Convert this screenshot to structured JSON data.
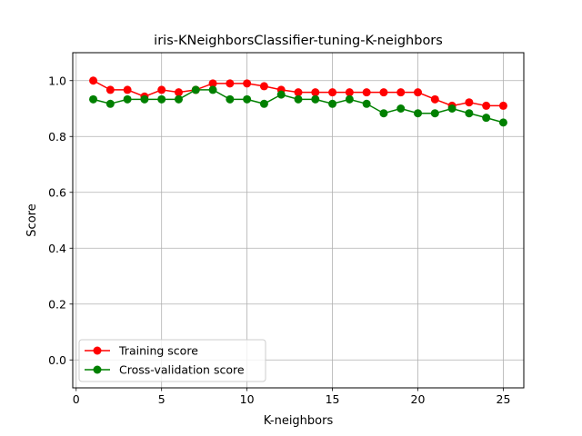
{
  "chart_data": {
    "type": "line",
    "title": "iris-KNeighborsClassifier-tuning-K-neighbors",
    "xlabel": "K-neighbors",
    "ylabel": "Score",
    "xlim": [
      -0.2,
      26.2
    ],
    "ylim": [
      -0.1,
      1.1
    ],
    "xticks": [
      0,
      5,
      10,
      15,
      20,
      25
    ],
    "yticks": [
      0.0,
      0.2,
      0.4,
      0.6,
      0.8,
      1.0
    ],
    "xtick_labels": [
      "0",
      "5",
      "10",
      "15",
      "20",
      "25"
    ],
    "ytick_labels": [
      "0.0",
      "0.2",
      "0.4",
      "0.6",
      "0.8",
      "1.0"
    ],
    "grid": true,
    "legend_position": "lower-left",
    "x": [
      1,
      2,
      3,
      4,
      5,
      6,
      7,
      8,
      9,
      10,
      11,
      12,
      13,
      14,
      15,
      16,
      17,
      18,
      19,
      20,
      21,
      22,
      23,
      24,
      25
    ],
    "series": [
      {
        "name": "Training score",
        "color": "#ff0000",
        "values": [
          1.0,
          0.967,
          0.967,
          0.943,
          0.967,
          0.958,
          0.967,
          0.99,
          0.99,
          0.99,
          0.98,
          0.967,
          0.958,
          0.958,
          0.958,
          0.958,
          0.958,
          0.958,
          0.958,
          0.958,
          0.933,
          0.91,
          0.922,
          0.91,
          0.91
        ]
      },
      {
        "name": "Cross-validation score",
        "color": "#008000",
        "values": [
          0.933,
          0.917,
          0.933,
          0.933,
          0.933,
          0.933,
          0.967,
          0.967,
          0.933,
          0.933,
          0.917,
          0.95,
          0.933,
          0.933,
          0.917,
          0.933,
          0.917,
          0.883,
          0.9,
          0.883,
          0.883,
          0.9,
          0.883,
          0.867,
          0.85
        ]
      }
    ]
  }
}
